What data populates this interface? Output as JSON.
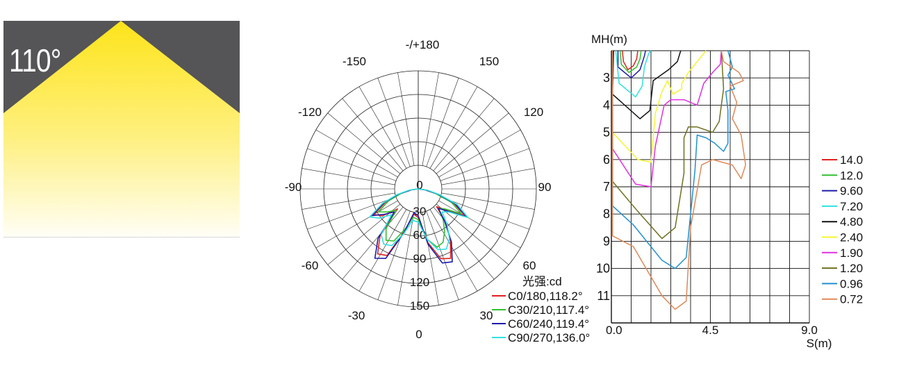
{
  "beam_panel": {
    "angle_label": "110°",
    "bg_color": "#555457",
    "light_color": "#fde93a"
  },
  "chart_data": [
    {
      "type": "polar",
      "unit_label": "光强:cd",
      "angle_labels_top": [
        "-/+180",
        "-150",
        "150",
        "-120",
        "120",
        "-90",
        "90",
        "-60",
        "60",
        "-30",
        "30",
        "0"
      ],
      "radial_labels": [
        "0",
        "30",
        "60",
        "90",
        "120",
        "150"
      ],
      "series": [
        {
          "name": "C0/180,118.2°",
          "color": "#e02020",
          "r": [
            0,
            10,
            30,
            55,
            80,
            70,
            45,
            95,
            120,
            115,
            70,
            40,
            45,
            85,
            115,
            120,
            95,
            70,
            40,
            55,
            85,
            60,
            30,
            10,
            0
          ]
        },
        {
          "name": "C30/210,117.4°",
          "color": "#30c030",
          "r": [
            0,
            12,
            28,
            50,
            72,
            60,
            48,
            80,
            95,
            90,
            66,
            45,
            48,
            80,
            96,
            92,
            78,
            62,
            44,
            52,
            78,
            56,
            28,
            12,
            0
          ]
        },
        {
          "name": "C60/240,119.4°",
          "color": "#1c1ca8",
          "r": [
            0,
            11,
            32,
            58,
            84,
            66,
            52,
            100,
            128,
            120,
            72,
            38,
            42,
            88,
            122,
            126,
            98,
            66,
            44,
            58,
            88,
            62,
            32,
            11,
            0
          ]
        },
        {
          "name": "C90/270,136.0°",
          "color": "#30e0e0",
          "r": [
            0,
            14,
            34,
            60,
            88,
            76,
            58,
            92,
            102,
            98,
            74,
            50,
            52,
            80,
            100,
            104,
            92,
            72,
            52,
            60,
            90,
            66,
            34,
            14,
            0
          ]
        }
      ],
      "angles_deg": [
        -90,
        -82,
        -75,
        -68,
        -60,
        -53,
        -46,
        -39,
        -32,
        -25,
        -18,
        -10,
        0,
        10,
        18,
        25,
        32,
        39,
        46,
        53,
        60,
        68,
        75,
        82,
        90
      ]
    },
    {
      "type": "contour",
      "ylabel": "MH(m)",
      "xlabel": "S(m)",
      "x_ticks": [
        "0.0",
        "4.5",
        "9.0"
      ],
      "y_ticks": [
        "3",
        "4",
        "5",
        "6",
        "7",
        "8",
        "9",
        "10",
        "11"
      ],
      "xlim": [
        0,
        9
      ],
      "ylim": [
        2,
        12
      ],
      "legend": [
        {
          "label": "14.0",
          "color": "#e02020"
        },
        {
          "label": "12.0",
          "color": "#30c030"
        },
        {
          "label": "9.60",
          "color": "#1c1ca8"
        },
        {
          "label": "7.20",
          "color": "#30e0e0"
        },
        {
          "label": "4.80",
          "color": "#111111"
        },
        {
          "label": "2.40",
          "color": "#f5f530"
        },
        {
          "label": "1.90",
          "color": "#e030e0"
        },
        {
          "label": "1.20",
          "color": "#6e7020"
        },
        {
          "label": "0.96",
          "color": "#2090d0"
        },
        {
          "label": "0.72",
          "color": "#e08858"
        }
      ],
      "contours": [
        {
          "color": "#e02020",
          "points": [
            [
              0.5,
              2
            ],
            [
              0.55,
              2.4
            ],
            [
              0.75,
              2.7
            ],
            [
              1.0,
              2.55
            ],
            [
              1.15,
              2.3
            ],
            [
              1.2,
              2
            ]
          ]
        },
        {
          "color": "#30c030",
          "points": [
            [
              0.4,
              2
            ],
            [
              0.45,
              2.5
            ],
            [
              0.8,
              2.8
            ],
            [
              1.15,
              2.6
            ],
            [
              1.3,
              2.3
            ],
            [
              1.35,
              2
            ]
          ]
        },
        {
          "color": "#1c1ca8",
          "points": [
            [
              0.3,
              2
            ],
            [
              0.3,
              2.6
            ],
            [
              0.9,
              3.0
            ],
            [
              1.3,
              2.7
            ],
            [
              1.5,
              2.2
            ],
            [
              1.55,
              2
            ]
          ]
        },
        {
          "color": "#30e0e0",
          "points": [
            [
              0.2,
              2
            ],
            [
              0.35,
              3.2
            ],
            [
              1.1,
              3.7
            ],
            [
              1.4,
              3.3
            ],
            [
              1.5,
              2.6
            ],
            [
              1.7,
              2.1
            ],
            [
              1.8,
              2
            ]
          ]
        },
        {
          "color": "#111111",
          "points": [
            [
              0.1,
              2
            ],
            [
              0.05,
              3.6
            ],
            [
              1.3,
              4.5
            ],
            [
              1.75,
              4.2
            ],
            [
              1.9,
              3.1
            ],
            [
              2.6,
              2.7
            ],
            [
              3.0,
              2.4
            ],
            [
              3.15,
              2
            ]
          ]
        },
        {
          "color": "#f5f530",
          "points": [
            [
              0.05,
              2
            ],
            [
              0.05,
              5.0
            ],
            [
              1.2,
              6.0
            ],
            [
              1.8,
              6.1
            ],
            [
              2.0,
              4.3
            ],
            [
              2.3,
              3.5
            ],
            [
              2.55,
              3.1
            ],
            [
              2.8,
              3.6
            ],
            [
              3.2,
              3.4
            ],
            [
              3.2,
              3.2
            ],
            [
              3.5,
              2.8
            ],
            [
              3.9,
              2.4
            ],
            [
              4.3,
              2.0
            ]
          ]
        },
        {
          "color": "#e030e0",
          "points": [
            [
              0.05,
              2
            ],
            [
              0.05,
              5.6
            ],
            [
              1.1,
              6.9
            ],
            [
              1.8,
              7.0
            ],
            [
              2.0,
              5.5
            ],
            [
              2.4,
              4.0
            ],
            [
              2.7,
              3.8
            ],
            [
              3.3,
              3.8
            ],
            [
              3.9,
              4.0
            ],
            [
              4.2,
              3.2
            ],
            [
              4.6,
              2.8
            ],
            [
              4.95,
              2.5
            ],
            [
              5.0,
              2
            ]
          ]
        },
        {
          "color": "#6e7020",
          "points": [
            [
              0.05,
              2
            ],
            [
              0.05,
              6.8
            ],
            [
              1.2,
              7.9
            ],
            [
              2.3,
              8.9
            ],
            [
              2.9,
              8.5
            ],
            [
              3.3,
              6.5
            ],
            [
              3.3,
              5.2
            ],
            [
              3.5,
              4.8
            ],
            [
              3.9,
              4.8
            ],
            [
              4.6,
              5.0
            ],
            [
              4.9,
              4.6
            ],
            [
              5.0,
              4.0
            ],
            [
              5.1,
              3.4
            ],
            [
              5.0,
              2.0
            ]
          ]
        },
        {
          "color": "#2090d0",
          "points": [
            [
              0.05,
              2
            ],
            [
              0.05,
              7.7
            ],
            [
              1.0,
              8.4
            ],
            [
              2.3,
              9.7
            ],
            [
              2.9,
              10.0
            ],
            [
              3.4,
              9.6
            ],
            [
              3.8,
              6.4
            ],
            [
              3.9,
              5.1
            ],
            [
              4.3,
              5.2
            ],
            [
              4.7,
              5.4
            ],
            [
              5.1,
              5.7
            ],
            [
              5.3,
              5.4
            ],
            [
              5.3,
              4.2
            ],
            [
              5.2,
              3.5
            ],
            [
              5.6,
              3.4
            ],
            [
              5.3,
              2.9
            ],
            [
              5.5,
              2.6
            ],
            [
              5.3,
              2
            ]
          ]
        },
        {
          "color": "#e08858",
          "points": [
            [
              0.05,
              2
            ],
            [
              0.05,
              8.8
            ],
            [
              1.0,
              9.2
            ],
            [
              2.3,
              11.0
            ],
            [
              2.9,
              11.5
            ],
            [
              3.4,
              11.2
            ],
            [
              3.6,
              8.5
            ],
            [
              4.1,
              6.2
            ],
            [
              4.6,
              6.0
            ],
            [
              5.5,
              6.2
            ],
            [
              5.9,
              6.7
            ],
            [
              6.1,
              6.2
            ],
            [
              5.9,
              5.1
            ],
            [
              5.5,
              4.5
            ],
            [
              5.7,
              3.9
            ],
            [
              5.4,
              3.3
            ],
            [
              6.0,
              3.1
            ],
            [
              5.8,
              2.8
            ],
            [
              5.1,
              2.4
            ],
            [
              5.0,
              2
            ]
          ]
        }
      ]
    }
  ]
}
